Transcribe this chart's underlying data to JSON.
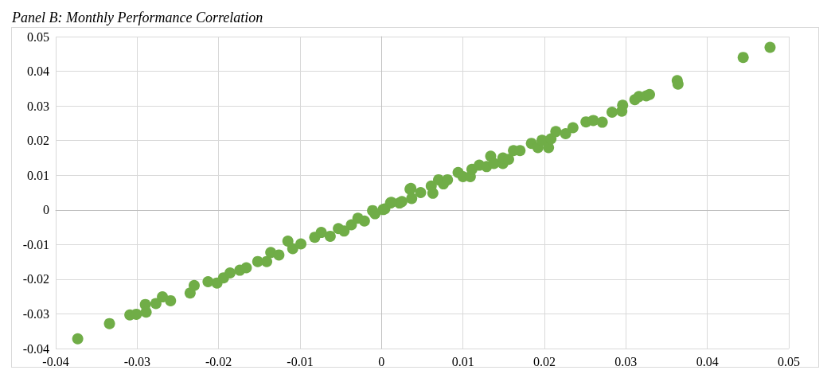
{
  "chart_data": {
    "type": "scatter",
    "title": "Panel B: Monthly Performance Correlation",
    "color": "#70ad47",
    "marker": "circle",
    "grid": true,
    "xlim": [
      -0.04,
      0.05
    ],
    "ylim": [
      -0.04,
      0.05
    ],
    "xticks": [
      -0.04,
      -0.03,
      -0.02,
      -0.01,
      0,
      0.01,
      0.02,
      0.03,
      0.04,
      0.05
    ],
    "yticks": [
      -0.04,
      -0.03,
      -0.02,
      -0.01,
      0,
      0.01,
      0.02,
      0.03,
      0.04,
      0.05
    ],
    "x": [
      -0.0373,
      -0.0334,
      -0.0309,
      -0.0301,
      -0.029,
      -0.0289,
      -0.0277,
      -0.0269,
      -0.0259,
      -0.0235,
      -0.023,
      -0.0213,
      -0.0202,
      -0.0194,
      -0.0186,
      -0.0174,
      -0.0166,
      -0.0152,
      -0.0141,
      -0.0136,
      -0.0126,
      -0.0115,
      -0.0109,
      -0.0099,
      -0.0082,
      -0.0074,
      -0.0063,
      -0.0053,
      -0.0046,
      -0.0037,
      -0.0029,
      -0.0021,
      -0.0011,
      -0.0008,
      0.0002,
      0.0011,
      0.0022,
      0.0035,
      0.0004,
      0.0012,
      0.0025,
      0.0036,
      0.0037,
      0.0048,
      0.0061,
      0.0063,
      0.007,
      0.0076,
      0.0081,
      0.0094,
      0.01,
      0.0109,
      0.0111,
      0.012,
      0.0129,
      0.0134,
      0.0138,
      0.0149,
      0.0149,
      0.0156,
      0.0162,
      0.017,
      0.0184,
      0.0192,
      0.0197,
      0.0205,
      0.0208,
      0.0214,
      0.0226,
      0.0235,
      0.0251,
      0.026,
      0.0271,
      0.0283,
      0.0296,
      0.0295,
      0.0311,
      0.0316,
      0.0325,
      0.0329,
      0.0363,
      0.0364,
      0.0444,
      0.0477
    ],
    "values": [
      -0.0372,
      -0.0328,
      -0.0303,
      -0.0301,
      -0.0273,
      -0.0295,
      -0.027,
      -0.0251,
      -0.0262,
      -0.024,
      -0.0218,
      -0.0207,
      -0.0211,
      -0.0196,
      -0.0182,
      -0.0174,
      -0.0167,
      -0.0149,
      -0.0149,
      -0.0123,
      -0.013,
      -0.009,
      -0.0112,
      -0.0098,
      -0.0079,
      -0.0065,
      -0.0076,
      -0.0054,
      -0.0061,
      -0.0043,
      -0.0024,
      -0.0032,
      -0.0002,
      -0.0011,
      0.0001,
      0.002,
      0.002,
      0.006,
      0.0003,
      0.0022,
      0.0024,
      0.0062,
      0.0033,
      0.005,
      0.0069,
      0.0048,
      0.0087,
      0.0075,
      0.0087,
      0.0108,
      0.0096,
      0.0096,
      0.0117,
      0.0129,
      0.0125,
      0.0155,
      0.0134,
      0.0134,
      0.015,
      0.0146,
      0.0171,
      0.0171,
      0.0192,
      0.018,
      0.0201,
      0.018,
      0.0205,
      0.0226,
      0.022,
      0.0237,
      0.0254,
      0.0258,
      0.0253,
      0.0282,
      0.0302,
      0.0285,
      0.0318,
      0.0327,
      0.0329,
      0.0333,
      0.0373,
      0.0363,
      0.044,
      0.0469
    ]
  }
}
